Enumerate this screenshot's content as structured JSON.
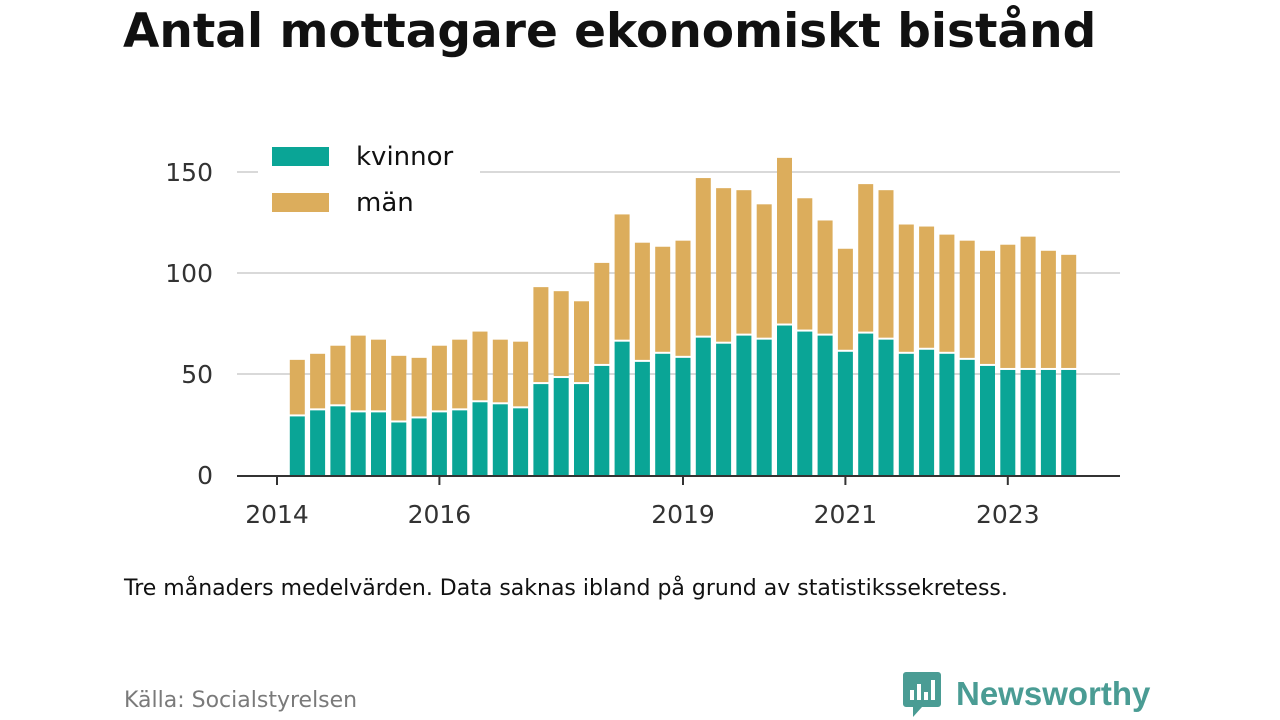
{
  "title": "Antal mottagare ekonomiskt bistånd",
  "footnote": "Tre månaders medelvärden. Data saknas ibland på grund av statistikssekretess.",
  "source": "Källa: Socialstyrelsen",
  "brand": {
    "name": "Newsworthy",
    "icon": "newsworthy-logo-icon",
    "color": "#4a9c94"
  },
  "chart_data": {
    "type": "bar",
    "stacked": true,
    "xlabel": "",
    "ylabel": "",
    "ylim": [
      0,
      160
    ],
    "yticks": [
      0,
      50,
      100,
      150
    ],
    "grid": true,
    "legend": "top-left",
    "x_axis": {
      "start_year": 2014,
      "periods_per_year": 4,
      "ticks": [
        {
          "label": "2014",
          "period": 0
        },
        {
          "label": "2016",
          "period": 8
        },
        {
          "label": "2019",
          "period": 20
        },
        {
          "label": "2021",
          "period": 28
        },
        {
          "label": "2023",
          "period": 36
        }
      ]
    },
    "bar_periods": [
      1,
      2,
      3,
      4,
      5,
      6,
      7,
      8,
      9,
      10,
      11,
      12,
      13,
      14,
      15,
      16,
      17,
      18,
      19,
      20,
      21,
      22,
      23,
      24,
      25,
      26,
      27,
      28,
      29,
      30,
      31,
      32,
      33,
      34,
      35,
      36,
      37,
      38,
      39
    ],
    "series": [
      {
        "name": "kvinnor",
        "color": "#0aa596",
        "values": [
          29,
          32,
          34,
          31,
          31,
          26,
          28,
          31,
          32,
          36,
          35,
          33,
          45,
          48,
          45,
          54,
          66,
          56,
          60,
          58,
          68,
          65,
          69,
          67,
          74,
          71,
          69,
          61,
          70,
          67,
          60,
          62,
          60,
          57,
          54,
          52,
          52,
          52,
          52
        ]
      },
      {
        "name": "män",
        "color": "#dcad5c",
        "values": [
          28,
          28,
          30,
          38,
          36,
          33,
          30,
          33,
          35,
          35,
          32,
          33,
          48,
          43,
          41,
          51,
          63,
          59,
          53,
          58,
          79,
          77,
          72,
          67,
          83,
          66,
          57,
          51,
          74,
          74,
          64,
          61,
          59,
          59,
          57,
          62,
          66,
          59,
          57
        ]
      }
    ]
  }
}
